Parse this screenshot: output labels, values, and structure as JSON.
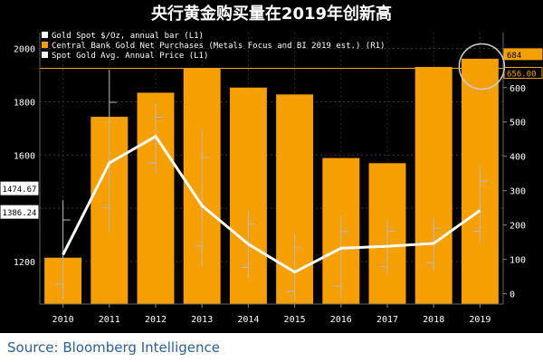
{
  "title": "央行黄金购买量在2019年创新高",
  "source": "Source: Bloomberg Intelligence",
  "chart_data": {
    "type": "bar",
    "categories": [
      "2010",
      "2011",
      "2012",
      "2013",
      "2014",
      "2015",
      "2016",
      "2017",
      "2018",
      "2019"
    ],
    "series": [
      {
        "name": "Central Bank Gold Net Purchases (Metals Focus and BI 2019 est.) (R1)",
        "kind": "bar",
        "axis": "right",
        "color": "#f5a000",
        "values": [
          105,
          515,
          585,
          655,
          600,
          580,
          395,
          380,
          660,
          684
        ]
      },
      {
        "name": "Spot Gold Avg. Annual Price (L1)",
        "kind": "line",
        "axis": "left",
        "color": "#ffffff",
        "values": [
          1225,
          1570,
          1670,
          1410,
          1265,
          1160,
          1250,
          1257,
          1268,
          1392
        ]
      },
      {
        "name": "Gold Spot $/Oz, annual bar (L1)",
        "kind": "range",
        "axis": "left",
        "color": "#bbbbbb",
        "ranges": [
          [
            1060,
            1430
          ],
          [
            1310,
            1920
          ],
          [
            1530,
            1795
          ],
          [
            1180,
            1695
          ],
          [
            1140,
            1390
          ],
          [
            1050,
            1305
          ],
          [
            1060,
            1375
          ],
          [
            1150,
            1355
          ],
          [
            1165,
            1365
          ],
          [
            1270,
            1560
          ]
        ]
      }
    ],
    "left_axis": {
      "ylim": [
        1040,
        2060
      ],
      "ticks": [
        1200,
        1400,
        1600,
        1800,
        2000
      ],
      "tick_labels": [
        "1200",
        "1400",
        "1600",
        "1800",
        "2000"
      ]
    },
    "right_axis": {
      "ylim": [
        -30,
        760
      ],
      "ticks": [
        0,
        100,
        200,
        300,
        400,
        500,
        600,
        700
      ],
      "tick_labels": [
        "0",
        "100",
        "200",
        "300",
        "400",
        "500",
        "600",
        "700"
      ]
    },
    "reference_line": {
      "value": 656,
      "axis": "right",
      "color": "#f5a000"
    },
    "left_value_tags": [
      {
        "value": 1474.67,
        "label": "1474.67"
      },
      {
        "value": 1386.24,
        "label": "1386.24"
      }
    ],
    "right_value_tags": [
      {
        "value": 684,
        "label": "684",
        "style": "filled"
      },
      {
        "value": 656,
        "label": "656.00",
        "style": "outline"
      }
    ],
    "highlight_circle_category": "2019",
    "legend_placement": "top-left",
    "grid": true
  }
}
